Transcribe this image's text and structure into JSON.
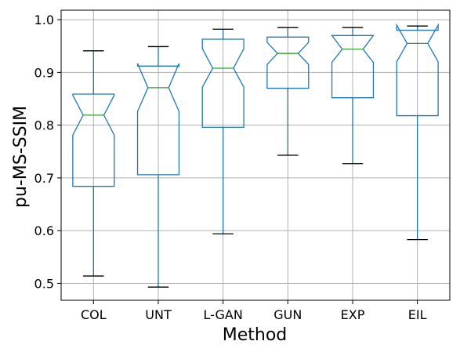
{
  "chart_data": {
    "type": "boxplot",
    "notched": true,
    "xlabel": "Method",
    "ylabel": "pu-MS-SSIM",
    "ylim": [
      0.468,
      1.018
    ],
    "yticks": [
      0.5,
      0.6,
      0.7,
      0.8,
      0.9,
      1.0
    ],
    "ytick_labels": [
      "0.5",
      "0.6",
      "0.7",
      "0.8",
      "0.9",
      "1.0"
    ],
    "grid": true,
    "box_color": "#1f77b4",
    "median_color": "#2ca02c",
    "categories": [
      "COL",
      "UNT",
      "L-GAN",
      "GUN",
      "EXP",
      "EIL"
    ],
    "boxes": [
      {
        "label": "COL",
        "whislo": 0.514,
        "q1": 0.684,
        "med": 0.819,
        "q3": 0.859,
        "whishi": 0.941,
        "cilo": 0.781,
        "cihi": 0.857
      },
      {
        "label": "UNT",
        "whislo": 0.493,
        "q1": 0.706,
        "med": 0.871,
        "q3": 0.912,
        "whishi": 0.949,
        "cilo": 0.826,
        "cihi": 0.917
      },
      {
        "label": "L-GAN",
        "whislo": 0.594,
        "q1": 0.796,
        "med": 0.908,
        "q3": 0.963,
        "whishi": 0.982,
        "cilo": 0.872,
        "cihi": 0.945
      },
      {
        "label": "GUN",
        "whislo": 0.743,
        "q1": 0.87,
        "med": 0.936,
        "q3": 0.967,
        "whishi": 0.985,
        "cilo": 0.915,
        "cihi": 0.957
      },
      {
        "label": "EXP",
        "whislo": 0.727,
        "q1": 0.852,
        "med": 0.944,
        "q3": 0.97,
        "whishi": 0.985,
        "cilo": 0.919,
        "cihi": 0.97
      },
      {
        "label": "EIL",
        "whislo": 0.583,
        "q1": 0.818,
        "med": 0.955,
        "q3": 0.98,
        "whishi": 0.988,
        "cilo": 0.92,
        "cihi": 0.99
      }
    ]
  }
}
